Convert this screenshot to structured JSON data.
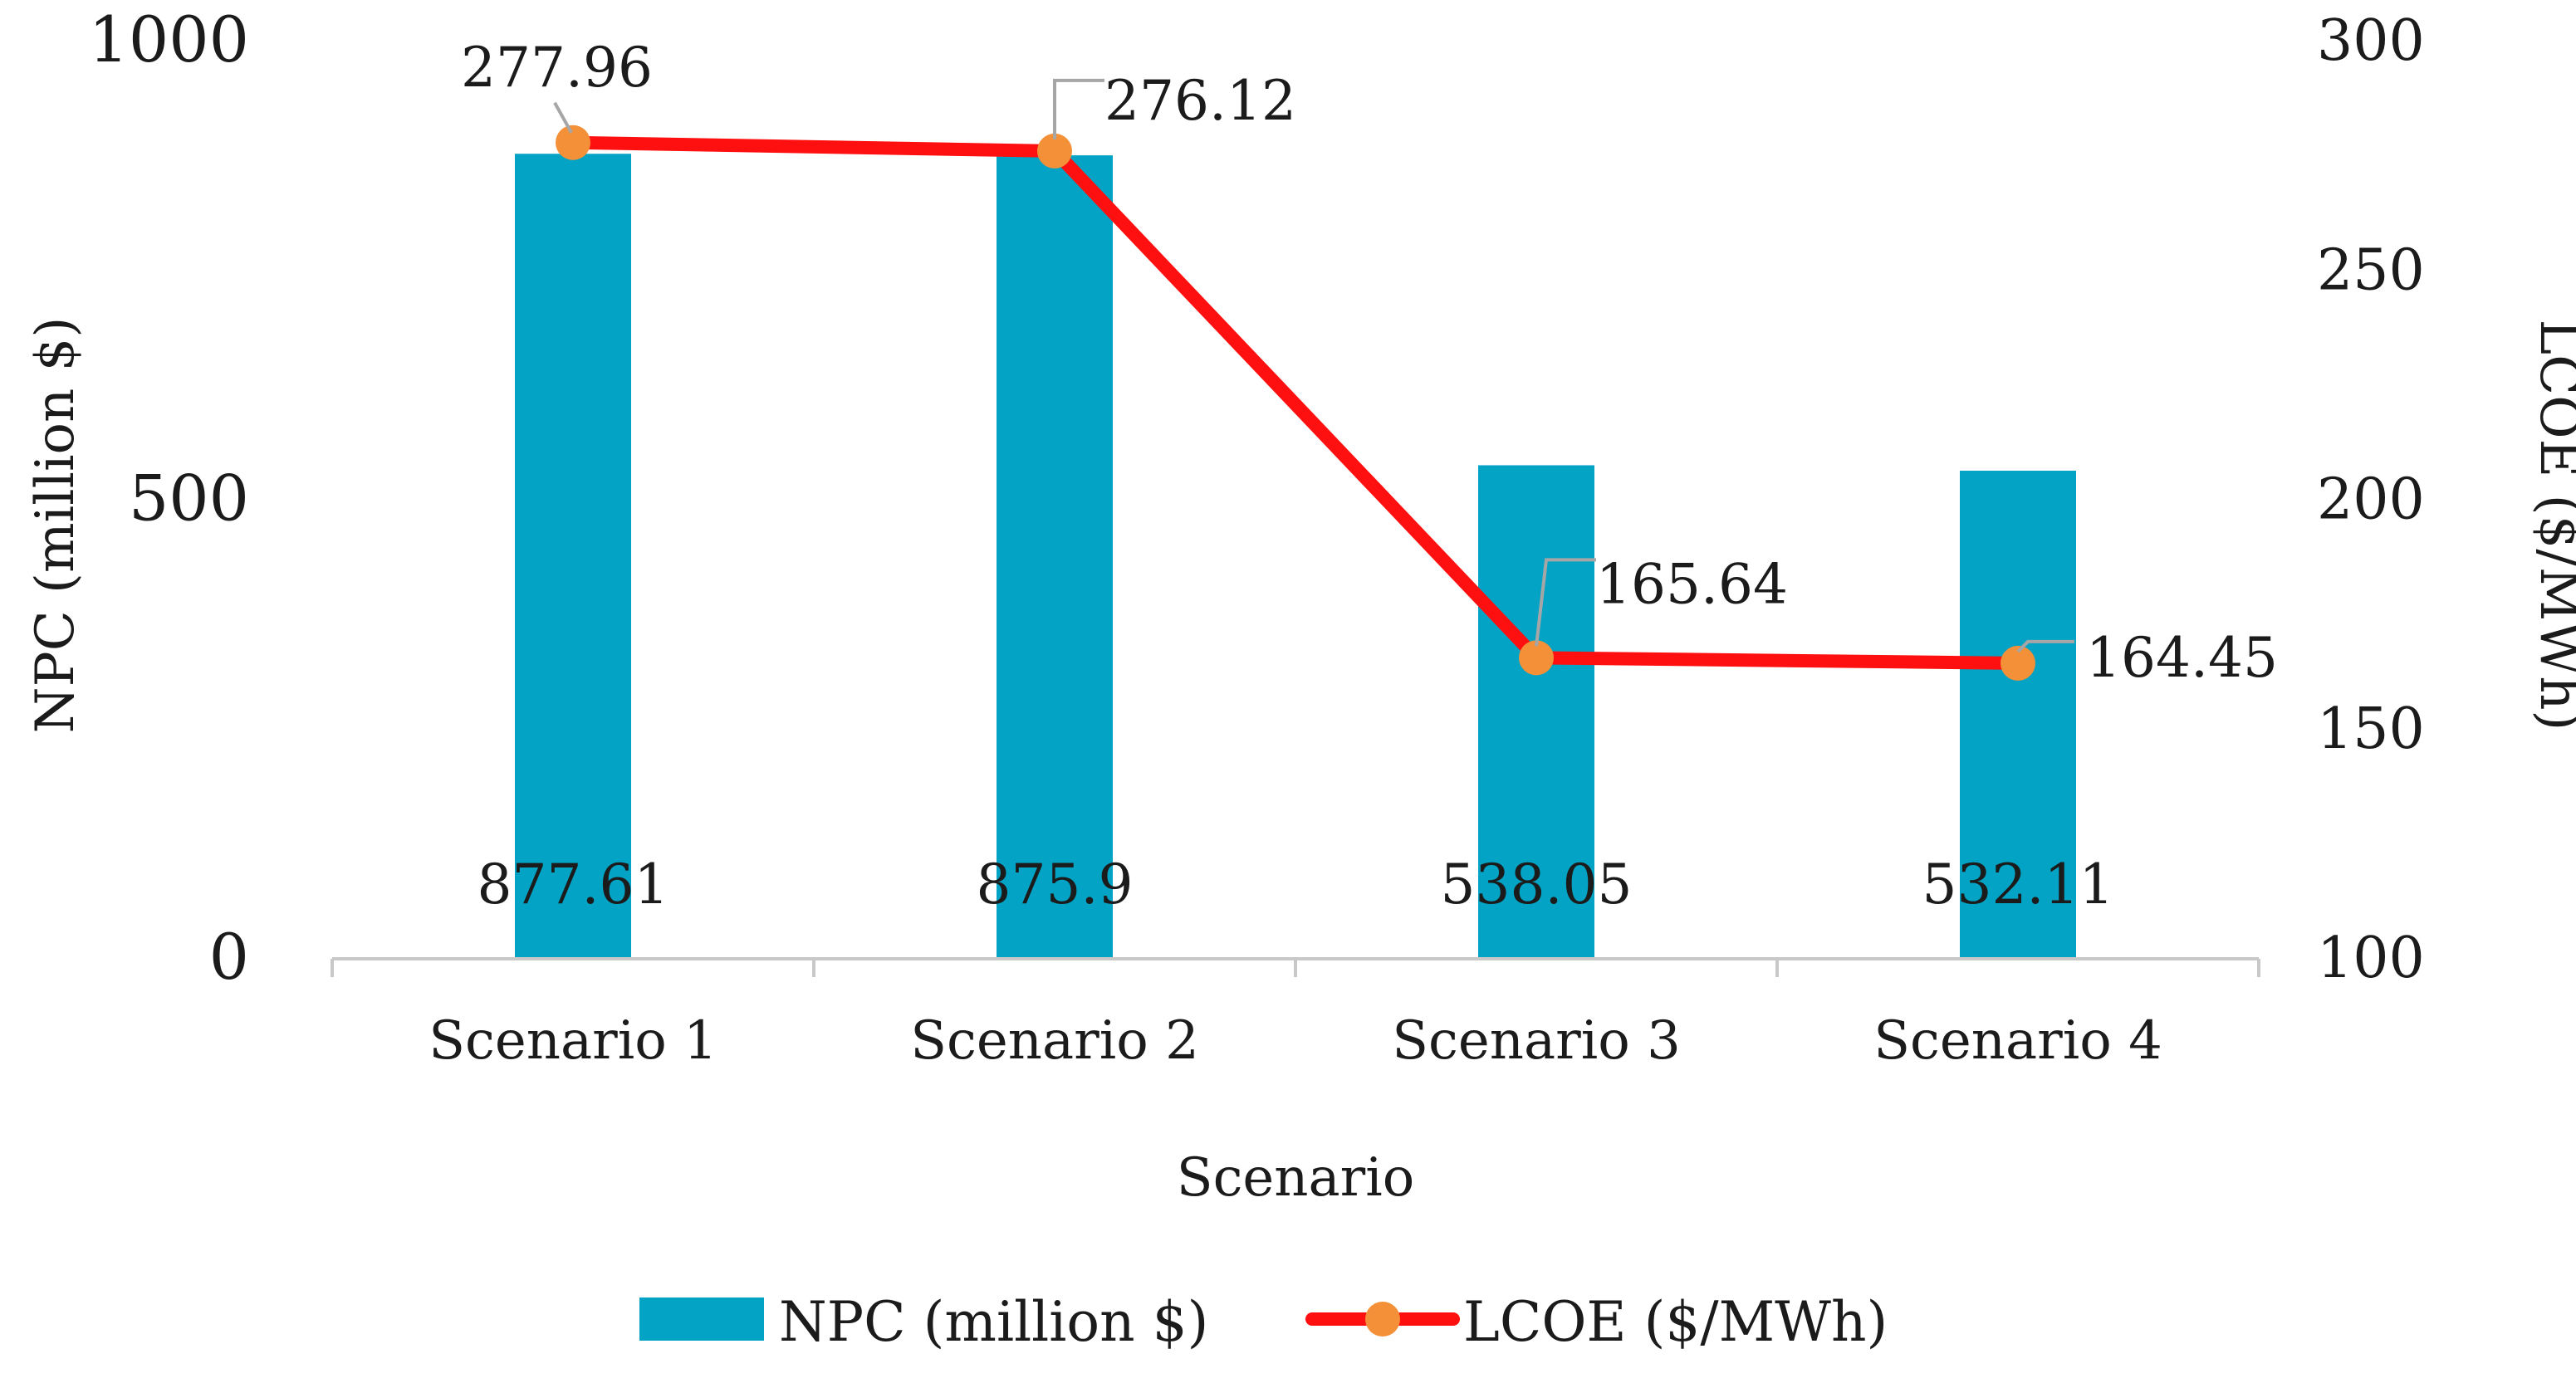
{
  "chart_data": {
    "type": "bar",
    "categories": [
      "Scenario 1",
      "Scenario 2",
      "Scenario 3",
      "Scenario 4"
    ],
    "xlabel": "Scenario",
    "ylabel": "NPC (million $)",
    "y2label": "LCOE ($/MWh)",
    "ylim": [
      0,
      1000
    ],
    "y2lim": [
      100,
      300
    ],
    "yticks": [
      0,
      500,
      1000
    ],
    "y2ticks": [
      100,
      150,
      200,
      250,
      300
    ],
    "grid": false,
    "legend_position": "bottom-center",
    "series": [
      {
        "name": "NPC (million $)",
        "type": "bar",
        "axis": "left",
        "color": "#03A3C5",
        "values": [
          877.61,
          875.9,
          538.05,
          532.11
        ],
        "labels": [
          "877.61",
          "875.9",
          "538.05",
          "532.11"
        ]
      },
      {
        "name": "LCOE ($/MWh)",
        "type": "line",
        "axis": "right",
        "color": "#FF1010",
        "marker_color": "#F39038",
        "values": [
          277.96,
          276.12,
          165.64,
          164.45
        ],
        "labels": [
          "277.96",
          "276.12",
          "165.64",
          "164.45"
        ]
      }
    ]
  }
}
